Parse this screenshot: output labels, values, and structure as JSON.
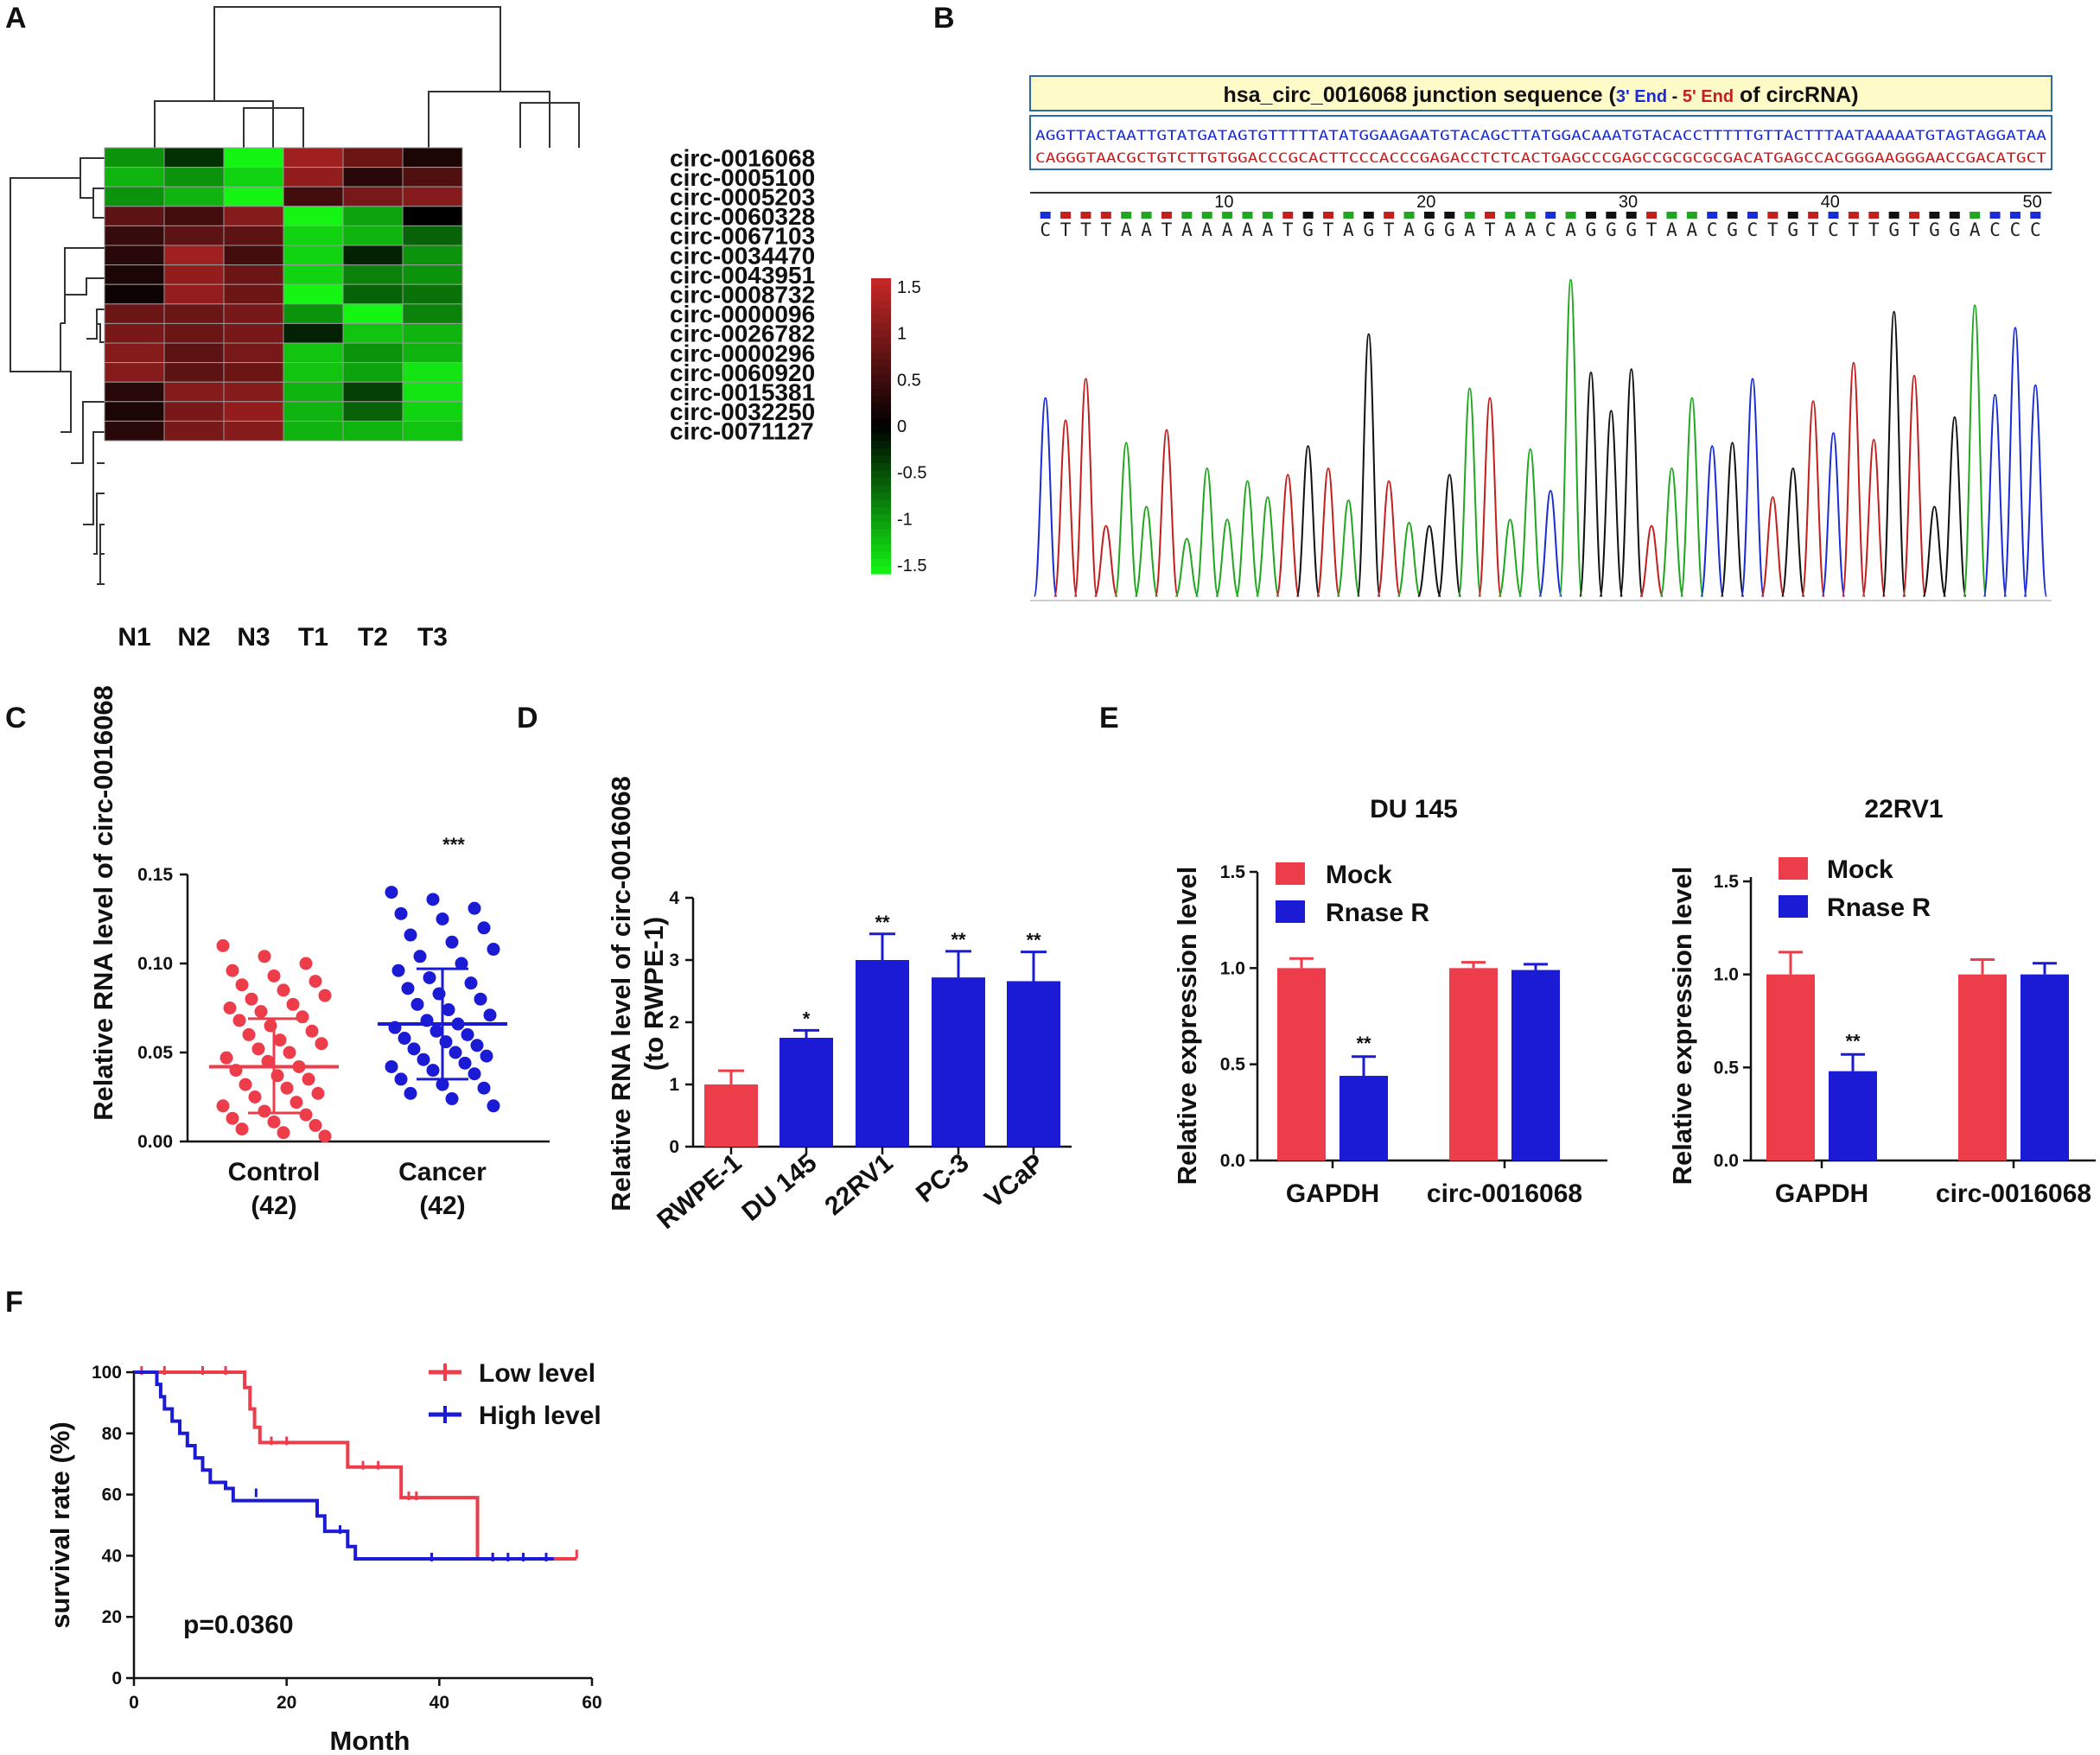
{
  "panel_labels": [
    "A",
    "B",
    "C",
    "D",
    "E",
    "F"
  ],
  "chart_data": [
    {
      "panel": "A",
      "type": "heatmap",
      "columns": [
        "N1",
        "N2",
        "N3",
        "T1",
        "T2",
        "T3"
      ],
      "rows": [
        "circ-0016068",
        "circ-0005100",
        "circ-0005203",
        "circ-0060328",
        "circ-0067103",
        "circ-0034470",
        "circ-0043951",
        "circ-0008732",
        "circ-0000096",
        "circ-0026782",
        "circ-0000296",
        "circ-0060920",
        "circ-0015381",
        "circ-0032250",
        "circ-0071127"
      ],
      "values": [
        [
          -0.9,
          -0.3,
          -1.5,
          1.2,
          0.8,
          0.2
        ],
        [
          -1.1,
          -0.9,
          -1.3,
          1.1,
          0.3,
          0.6
        ],
        [
          -0.9,
          -1.1,
          -1.5,
          0.5,
          0.9,
          1.0
        ],
        [
          0.7,
          0.5,
          1.0,
          -1.5,
          -1.0,
          0.0
        ],
        [
          0.4,
          0.7,
          0.7,
          -1.3,
          -1.1,
          -0.6
        ],
        [
          0.3,
          1.2,
          0.5,
          -1.3,
          -0.2,
          -0.9
        ],
        [
          0.2,
          1.1,
          0.8,
          -1.3,
          -0.8,
          -0.9
        ],
        [
          0.1,
          1.1,
          0.8,
          -1.5,
          -0.6,
          -0.7
        ],
        [
          0.8,
          0.8,
          0.9,
          -0.9,
          -1.5,
          -0.8
        ],
        [
          0.9,
          0.8,
          0.9,
          -0.2,
          -1.2,
          -1.1
        ],
        [
          1.0,
          0.7,
          0.9,
          -1.2,
          -0.9,
          -1.1
        ],
        [
          1.0,
          0.7,
          0.8,
          -1.2,
          -1.0,
          -1.4
        ],
        [
          0.3,
          1.0,
          1.0,
          -1.1,
          -0.4,
          -1.4
        ],
        [
          0.2,
          0.9,
          1.1,
          -1.1,
          -0.6,
          -1.3
        ],
        [
          0.3,
          0.9,
          1.0,
          -1.1,
          -1.1,
          -1.2
        ]
      ],
      "scale_ticks": [
        "1.5",
        "1",
        "0.5",
        "0",
        "-0.5",
        "-1",
        "-1.5"
      ],
      "vrange": [
        -1.5,
        1.5
      ],
      "colors": {
        "low": "#14f514",
        "mid": "#000000",
        "high": "#c82828"
      }
    },
    {
      "panel": "B",
      "type": "sequencing-trace",
      "title_prefix": "hsa_circ_0016068 junction sequence (",
      "title_end3": "3' End",
      "title_dash": " - ",
      "title_end5": "5' End",
      "title_suffix": " of circRNA)",
      "seq_line1": "AGGTTACTAATTGTATGATAGTGTTTTTATATGGAAGAATGTACAGCTTATGGACAAATGTACACCTTTTTGTTACTTTAATAAAAATGTAGTAGGATAA",
      "seq_line2": "CAGGGTAACGCTGTCTTGTGGACCCGCACTTCCCACCCGAGACCTCTCACTGAGCCCGAGCCGCGCGCGACATGAGCCACGGGAAGGGAACCGACATGCT",
      "ruler_ticks": [
        "10",
        "20",
        "30",
        "40",
        "50"
      ],
      "bases": "CTTTAATAAAAATGTAGTAGGATAACAGGGTAACGCTGTCTTGTGGACCC",
      "base_colors": {
        "A": "#1fa81f",
        "C": "#1a2cd6",
        "G": "#111111",
        "T": "#c41f1f"
      },
      "peak_heights": [
        0.62,
        0.55,
        0.68,
        0.22,
        0.48,
        0.28,
        0.52,
        0.18,
        0.4,
        0.24,
        0.36,
        0.31,
        0.38,
        0.47,
        0.4,
        0.3,
        0.82,
        0.36,
        0.23,
        0.22,
        0.38,
        0.65,
        0.62,
        0.24,
        0.46,
        0.33,
        0.99,
        0.7,
        0.58,
        0.71,
        0.22,
        0.4,
        0.62,
        0.47,
        0.48,
        0.68,
        0.31,
        0.4,
        0.61,
        0.51,
        0.73,
        0.49,
        0.89,
        0.69,
        0.28,
        0.56,
        0.91,
        0.63,
        0.84,
        0.66
      ]
    },
    {
      "panel": "C",
      "type": "scatter",
      "ylabel": "Relative RNA level of circ-0016068",
      "ylim": [
        0,
        0.15
      ],
      "yticks": [
        "0.00",
        "0.05",
        "0.10",
        "0.15"
      ],
      "significance": "***",
      "groups": [
        {
          "name": "Control",
          "n_label": "(42)",
          "mean": 0.042,
          "sd_low": 0.016,
          "sd_high": 0.069,
          "color": "#ee3d4a",
          "values": [
            0.11,
            0.104,
            0.1,
            0.096,
            0.093,
            0.09,
            0.088,
            0.085,
            0.082,
            0.08,
            0.077,
            0.075,
            0.073,
            0.07,
            0.068,
            0.065,
            0.062,
            0.06,
            0.057,
            0.055,
            0.052,
            0.05,
            0.047,
            0.045,
            0.042,
            0.04,
            0.037,
            0.035,
            0.032,
            0.03,
            0.027,
            0.025,
            0.022,
            0.02,
            0.017,
            0.015,
            0.013,
            0.011,
            0.009,
            0.007,
            0.005,
            0.003
          ]
        },
        {
          "name": "Cancer",
          "n_label": "(42)",
          "mean": 0.066,
          "sd_low": 0.035,
          "sd_high": 0.097,
          "color": "#1b1bd6",
          "values": [
            0.14,
            0.136,
            0.131,
            0.128,
            0.125,
            0.12,
            0.116,
            0.112,
            0.108,
            0.104,
            0.1,
            0.096,
            0.092,
            0.089,
            0.086,
            0.083,
            0.08,
            0.077,
            0.074,
            0.071,
            0.068,
            0.066,
            0.064,
            0.062,
            0.06,
            0.058,
            0.056,
            0.054,
            0.052,
            0.05,
            0.048,
            0.046,
            0.044,
            0.042,
            0.04,
            0.038,
            0.035,
            0.032,
            0.03,
            0.027,
            0.024,
            0.02
          ]
        }
      ]
    },
    {
      "panel": "D",
      "type": "bar",
      "ylabel1": "Relative RNA level of circ-0016068",
      "ylabel2": "(to RWPE-1)",
      "ylim": [
        0,
        4
      ],
      "yticks": [
        "0",
        "1",
        "2",
        "3",
        "4"
      ],
      "categories": [
        "RWPE-1",
        "DU 145",
        "22RV1",
        "PC-3",
        "VCaP"
      ],
      "values": [
        1.0,
        1.75,
        3.0,
        2.72,
        2.66
      ],
      "errors": [
        0.22,
        0.12,
        0.42,
        0.42,
        0.47
      ],
      "significance": [
        "",
        "*",
        "**",
        "**",
        "**"
      ],
      "colors": [
        "#ee3d4a",
        "#1b1bd6",
        "#1b1bd6",
        "#1b1bd6",
        "#1b1bd6"
      ]
    },
    {
      "panel": "E",
      "type": "bar",
      "title": "DU 145",
      "ylabel": "Relative expression level",
      "ylim": [
        0,
        1.5
      ],
      "yticks": [
        "0.0",
        "0.5",
        "1.0",
        "1.5"
      ],
      "categories": [
        "GAPDH",
        "circ-0016068"
      ],
      "series": [
        {
          "name": "Mock",
          "values": [
            1.0,
            1.0
          ],
          "errors": [
            0.05,
            0.03
          ],
          "color": "#ee3d4a"
        },
        {
          "name": "Rnase R",
          "values": [
            0.44,
            0.99
          ],
          "errors": [
            0.1,
            0.03
          ],
          "color": "#1b1bd6"
        }
      ],
      "significance": [
        "**",
        ""
      ]
    },
    {
      "panel": "E",
      "type": "bar",
      "title": "22RV1",
      "ylabel": "Relative expression level",
      "ylim": [
        0,
        1.5
      ],
      "yticks": [
        "0.0",
        "0.5",
        "1.0",
        "1.5"
      ],
      "categories": [
        "GAPDH",
        "circ-0016068"
      ],
      "series": [
        {
          "name": "Mock",
          "values": [
            1.0,
            1.0
          ],
          "errors": [
            0.12,
            0.08
          ],
          "color": "#ee3d4a"
        },
        {
          "name": "Rnase R",
          "values": [
            0.48,
            1.0
          ],
          "errors": [
            0.09,
            0.06
          ],
          "color": "#1b1bd6"
        }
      ],
      "significance": [
        "**",
        ""
      ]
    },
    {
      "panel": "F",
      "type": "line",
      "subtype": "kaplan-meier",
      "xlabel": "Month",
      "ylabel": "survival rate (%)",
      "xlim": [
        0,
        60
      ],
      "ylim": [
        0,
        100
      ],
      "xticks": [
        "0",
        "20",
        "40",
        "60"
      ],
      "yticks": [
        "0",
        "20",
        "40",
        "60",
        "80",
        "100"
      ],
      "annotation": "p=0.0360",
      "series": [
        {
          "name": "Low level",
          "color": "#ee3d4a",
          "steps": [
            [
              0,
              100
            ],
            [
              14.5,
              100
            ],
            [
              14.5,
              95
            ],
            [
              15.2,
              95
            ],
            [
              15.2,
              88
            ],
            [
              15.8,
              88
            ],
            [
              15.8,
              82
            ],
            [
              16.5,
              82
            ],
            [
              16.5,
              77
            ],
            [
              28,
              77
            ],
            [
              28,
              69
            ],
            [
              35,
              69
            ],
            [
              35,
              59
            ],
            [
              45,
              59
            ],
            [
              45,
              39
            ],
            [
              58,
              39
            ]
          ],
          "censored": [
            [
              1,
              100
            ],
            [
              4,
              100
            ],
            [
              9,
              100
            ],
            [
              12,
              100
            ],
            [
              18,
              77
            ],
            [
              20,
              77
            ],
            [
              30,
              69
            ],
            [
              32,
              69
            ],
            [
              36,
              59
            ],
            [
              37,
              59
            ],
            [
              47,
              39
            ],
            [
              58,
              40
            ]
          ]
        },
        {
          "name": "High level",
          "color": "#1b1bd6",
          "steps": [
            [
              0,
              100
            ],
            [
              3,
              100
            ],
            [
              3,
              96
            ],
            [
              3.5,
              96
            ],
            [
              3.5,
              92
            ],
            [
              4,
              92
            ],
            [
              4,
              88
            ],
            [
              5,
              88
            ],
            [
              5,
              84
            ],
            [
              6,
              84
            ],
            [
              6,
              80
            ],
            [
              7,
              80
            ],
            [
              7,
              76
            ],
            [
              8,
              76
            ],
            [
              8,
              72
            ],
            [
              9,
              72
            ],
            [
              9,
              68
            ],
            [
              10,
              68
            ],
            [
              10,
              64
            ],
            [
              12,
              64
            ],
            [
              12,
              62
            ],
            [
              13,
              62
            ],
            [
              13,
              58
            ],
            [
              24,
              58
            ],
            [
              24,
              53
            ],
            [
              25,
              53
            ],
            [
              25,
              48
            ],
            [
              28,
              48
            ],
            [
              28,
              43
            ],
            [
              29,
              43
            ],
            [
              29,
              39
            ],
            [
              55,
              39
            ]
          ],
          "censored": [
            [
              16,
              60
            ],
            [
              27,
              48
            ],
            [
              39,
              39
            ],
            [
              47,
              39
            ],
            [
              49,
              39
            ],
            [
              51,
              39
            ],
            [
              54,
              39
            ]
          ]
        }
      ]
    }
  ]
}
